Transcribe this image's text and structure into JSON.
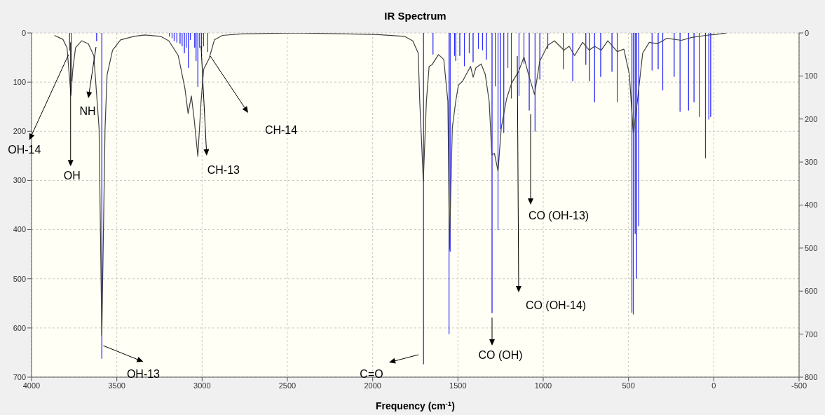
{
  "chart_data": {
    "type": "line",
    "title": "IR Spectrum",
    "xlabel": "Frequency (cm$^{-1}$)",
    "xlim": [
      4000,
      -500
    ],
    "xticks": [
      4000,
      3500,
      3000,
      2500,
      2000,
      1500,
      1000,
      500,
      0,
      -500
    ],
    "ylim": [
      700,
      0
    ],
    "yticks": [
      0,
      100,
      200,
      300,
      400,
      500,
      600,
      700
    ],
    "y2lim": [
      800,
      0
    ],
    "y2ticks": [
      0,
      100,
      200,
      300,
      400,
      500,
      600,
      700,
      800
    ],
    "grid": true,
    "series": [
      {
        "color": "#404040",
        "x": [
          3866,
          3816,
          3792,
          3769,
          3758,
          3742,
          3706,
          3667,
          3635,
          3604,
          3588,
          3569,
          3557,
          3525,
          3478,
          3400,
          3337,
          3242,
          3195,
          3140,
          3101,
          3082,
          3063,
          3046,
          3025,
          3006,
          2991,
          2959,
          2928,
          2881,
          2771,
          2456,
          1985,
          1812,
          1765,
          1733,
          1724,
          1703,
          1685,
          1669,
          1653,
          1614,
          1583,
          1559,
          1550,
          1533,
          1513,
          1497,
          1473,
          1426,
          1411,
          1395,
          1364,
          1340,
          1317,
          1301,
          1286,
          1265,
          1246,
          1215,
          1184,
          1145,
          1113,
          1082,
          1051,
          1020,
          973,
          934,
          879,
          848,
          816,
          769,
          730,
          699,
          660,
          621,
          566,
          527,
          495,
          472,
          448,
          417,
          378,
          331,
          276,
          190,
          128,
          49,
          -13,
          -75
        ],
        "values": [
          5,
          13,
          30,
          127,
          74,
          30,
          16,
          22,
          46,
          194,
          615,
          194,
          85,
          35,
          14,
          7,
          4,
          7,
          16,
          46,
          112,
          164,
          128,
          177,
          251,
          139,
          74,
          52,
          14,
          5,
          2,
          0,
          3,
          7,
          16,
          41,
          139,
          301,
          139,
          68,
          65,
          44,
          54,
          139,
          440,
          193,
          139,
          106,
          98,
          68,
          90,
          71,
          63,
          84,
          139,
          248,
          245,
          281,
          193,
          134,
          101,
          79,
          49,
          90,
          125,
          57,
          25,
          16,
          35,
          27,
          46,
          19,
          35,
          27,
          35,
          16,
          38,
          33,
          84,
          204,
          139,
          41,
          19,
          22,
          11,
          15,
          9,
          5,
          3,
          0
        ]
      },
      {
        "type": "bar",
        "axis": "y2",
        "color": "#0000ff",
        "x": [
          3777,
          3767,
          3618,
          3588,
          3192,
          3176,
          3164,
          3148,
          3129,
          3117,
          3104,
          3093,
          3080,
          3069,
          3043,
          3035,
          3025,
          3014,
          3003,
          2991,
          2967,
          1702,
          1646,
          1552,
          1546,
          1520,
          1513,
          1489,
          1462,
          1434,
          1411,
          1380,
          1356,
          1333,
          1300,
          1281,
          1265,
          1251,
          1231,
          1207,
          1187,
          1142,
          1113,
          1082,
          1048,
          1020,
          973,
          882,
          827,
          750,
          728,
          699,
          663,
          597,
          566,
          480,
          472,
          461,
          453,
          440,
          362,
          326,
          299,
          232,
          198,
          148,
          116,
          85,
          49,
          29,
          18
        ],
        "values": [
          41,
          112,
          19,
          757,
          8,
          12,
          19,
          22,
          25,
          31,
          47,
          34,
          81,
          16,
          34,
          65,
          125,
          34,
          41,
          31,
          44,
          770,
          50,
          700,
          508,
          53,
          65,
          53,
          77,
          47,
          68,
          37,
          40,
          62,
          651,
          124,
          458,
          223,
          232,
          81,
          152,
          146,
          71,
          180,
          229,
          108,
          37,
          84,
          112,
          74,
          112,
          161,
          102,
          90,
          161,
          650,
          654,
          467,
          571,
          449,
          87,
          84,
          133,
          102,
          183,
          180,
          161,
          195,
          291,
          201,
          195
        ]
      }
    ],
    "annotations": [
      {
        "text": "OH-14",
        "x": 3783,
        "y": 44
      },
      {
        "text": "OH",
        "x": 3771,
        "y": 19
      },
      "NH",
      {
        "text": "CH-13",
        "x": 3006,
        "y": 27
      },
      "CH-14",
      {
        "text": "OH-13",
        "x": 3579,
        "y": 636
      },
      "C=O",
      "CO (OH)",
      "CO (OH-14)",
      "CO (OH-13)"
    ]
  }
}
